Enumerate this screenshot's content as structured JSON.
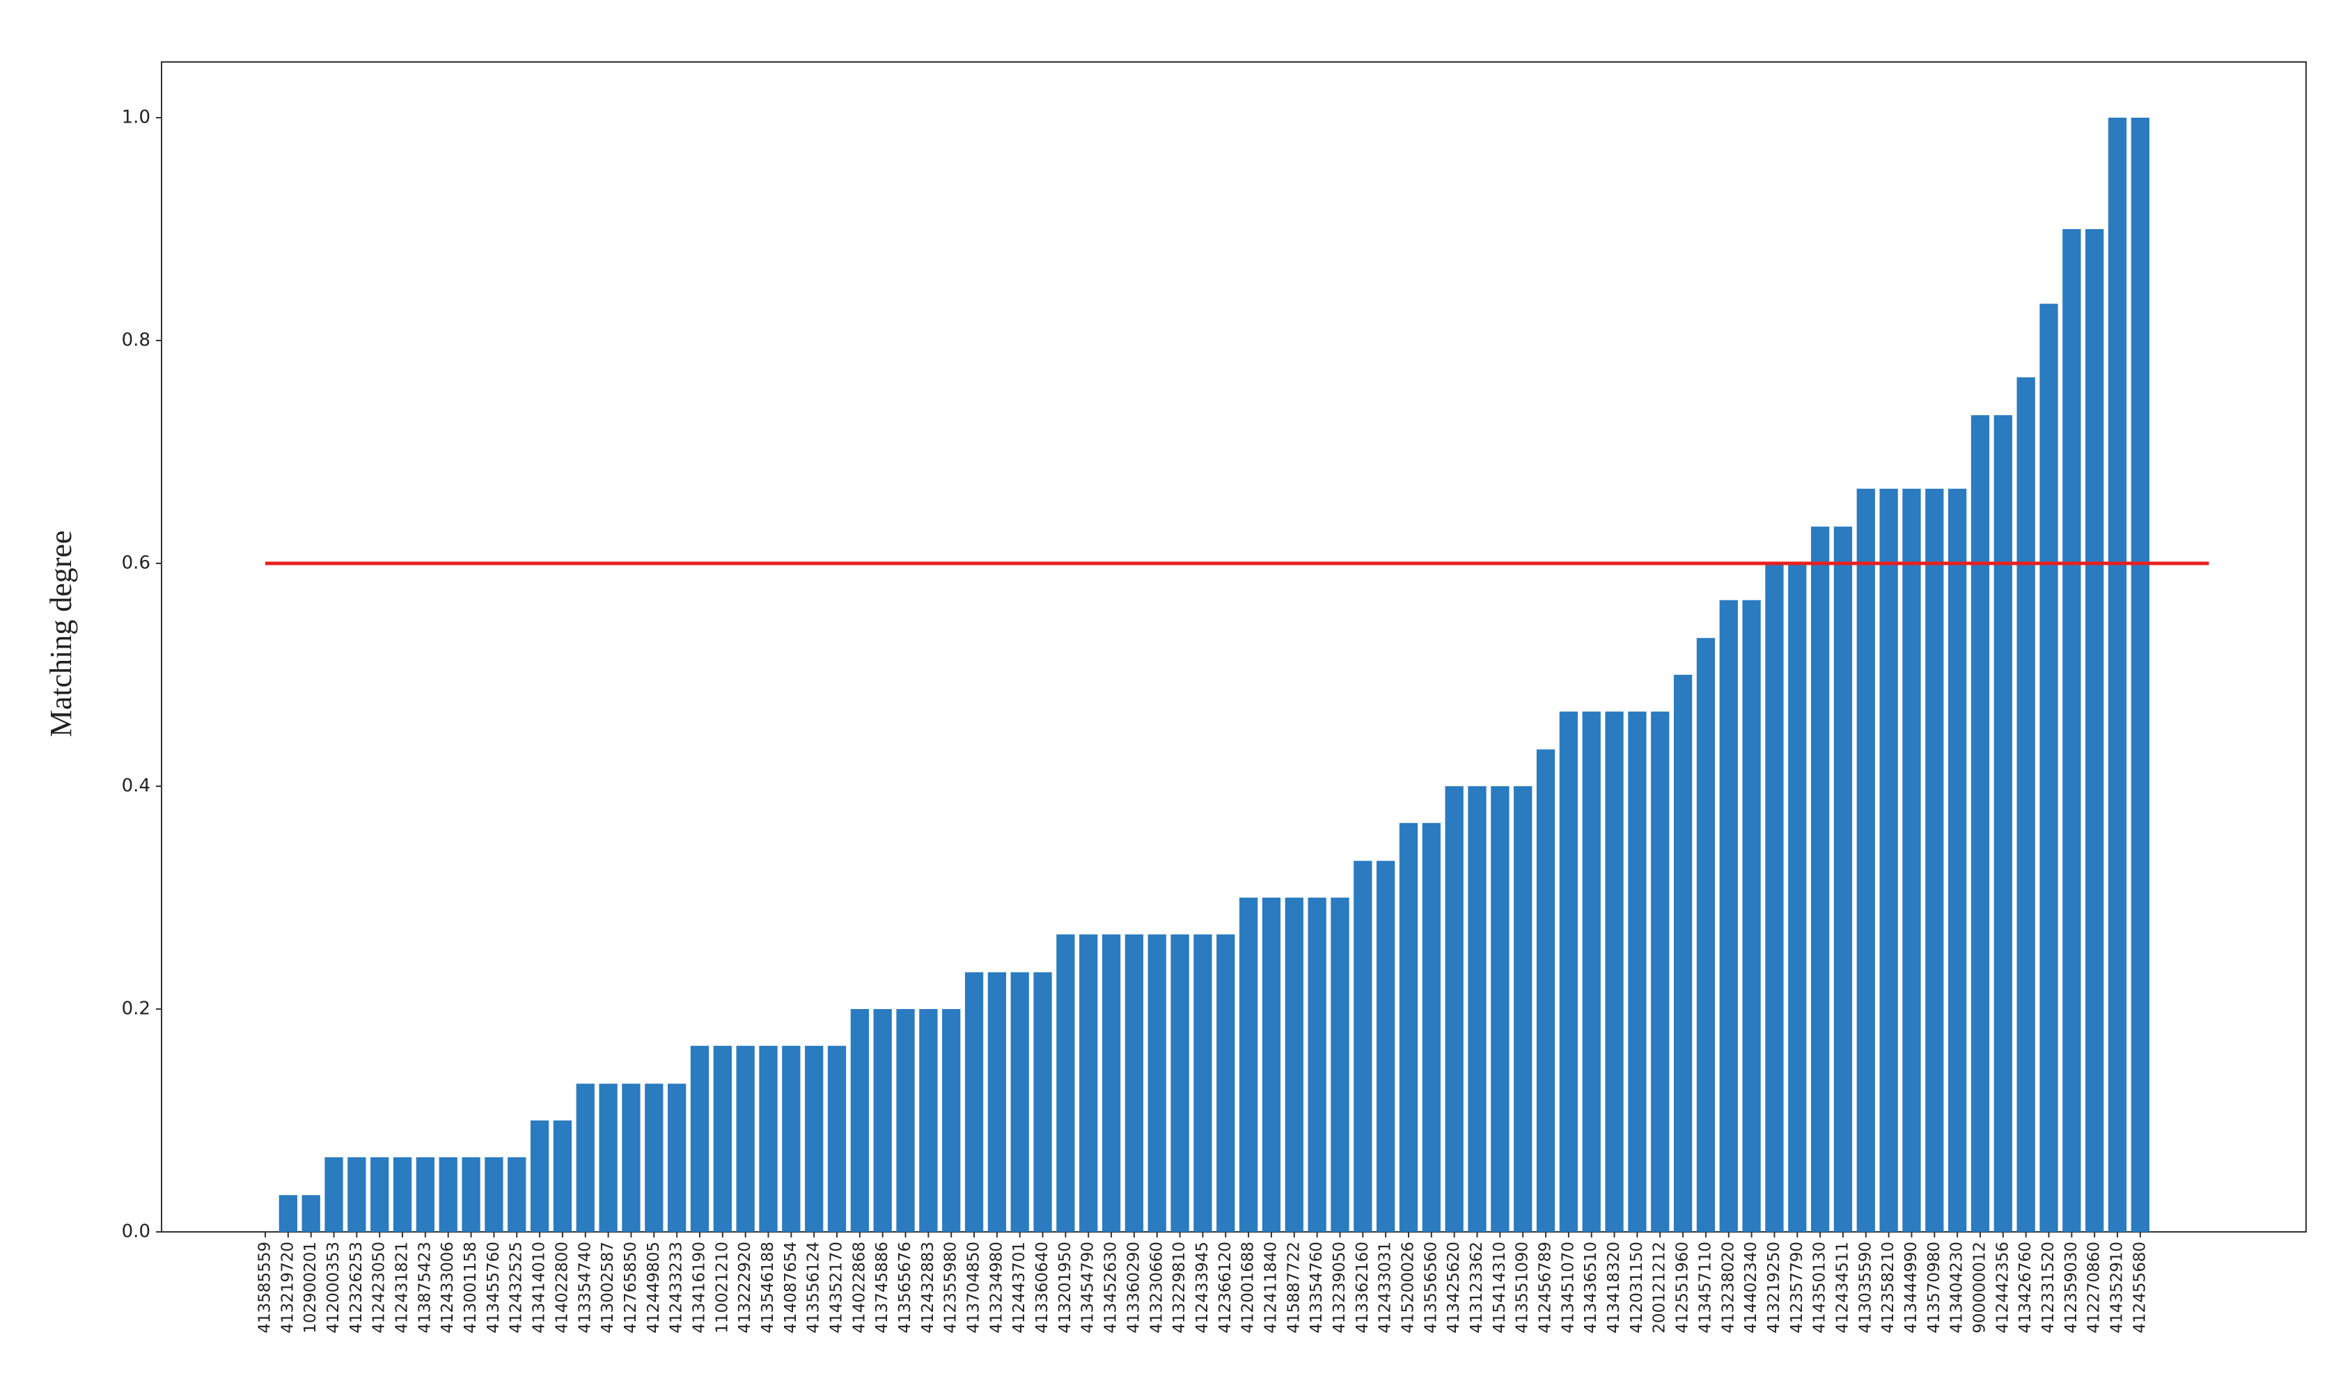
{
  "chart_data": {
    "type": "bar",
    "y_label": "Matching degree",
    "categories": [
      "413585559",
      "413219720",
      "102900201",
      "412000353",
      "412326253",
      "412423050",
      "412431821",
      "413875423",
      "412433006",
      "413001158",
      "413455760",
      "412432525",
      "413414010",
      "414022800",
      "413354740",
      "413002587",
      "412765850",
      "412449805",
      "412433233",
      "413416190",
      "110021210",
      "413222920",
      "413546188",
      "414087654",
      "413556124",
      "414352170",
      "414022868",
      "413745886",
      "413565676",
      "412432883",
      "412355980",
      "413704850",
      "413234980",
      "412443701",
      "413360640",
      "413201950",
      "413454790",
      "413452630",
      "413360290",
      "413230660",
      "413229810",
      "412433945",
      "412366120",
      "412001688",
      "412411840",
      "415887722",
      "413354760",
      "413239050",
      "413362160",
      "412433031",
      "415200026",
      "413556560",
      "413425620",
      "413123362",
      "415414310",
      "413551090",
      "412456789",
      "413451070",
      "413436510",
      "413418320",
      "412031150",
      "200121212",
      "412551960",
      "413457110",
      "413238020",
      "414402340",
      "413219250",
      "412357790",
      "414350130",
      "412434511",
      "413035590",
      "412358210",
      "413444990",
      "413570980",
      "413404230",
      "900000012",
      "412442356",
      "413426760",
      "412331520",
      "412359030",
      "412270860",
      "414352910",
      "412455680"
    ],
    "values": [
      0,
      0.033,
      0.033,
      0.067,
      0.067,
      0.067,
      0.067,
      0.067,
      0.067,
      0.067,
      0.067,
      0.067,
      0.1,
      0.1,
      0.133,
      0.133,
      0.133,
      0.133,
      0.133,
      0.167,
      0.167,
      0.167,
      0.167,
      0.167,
      0.167,
      0.167,
      0.2,
      0.2,
      0.2,
      0.2,
      0.2,
      0.233,
      0.233,
      0.233,
      0.233,
      0.267,
      0.267,
      0.267,
      0.267,
      0.267,
      0.267,
      0.267,
      0.267,
      0.3,
      0.3,
      0.3,
      0.3,
      0.3,
      0.333,
      0.333,
      0.367,
      0.367,
      0.4,
      0.4,
      0.4,
      0.4,
      0.433,
      0.467,
      0.467,
      0.467,
      0.467,
      0.467,
      0.5,
      0.533,
      0.567,
      0.567,
      0.6,
      0.6,
      0.633,
      0.633,
      0.667,
      0.667,
      0.667,
      0.667,
      0.667,
      0.733,
      0.733,
      0.767,
      0.833,
      0.9,
      0.9,
      1.0,
      1.0
    ],
    "color": "#2a7bc0",
    "threshold": 0.6,
    "threshold_color": "#e8201f",
    "ylim": [
      0,
      1.05
    ],
    "yticks": [
      {
        "value": 0,
        "label": "0.0"
      },
      0.2,
      0.4,
      0.6,
      0.8,
      {
        "value": 1,
        "label": "1.0"
      }
    ]
  }
}
